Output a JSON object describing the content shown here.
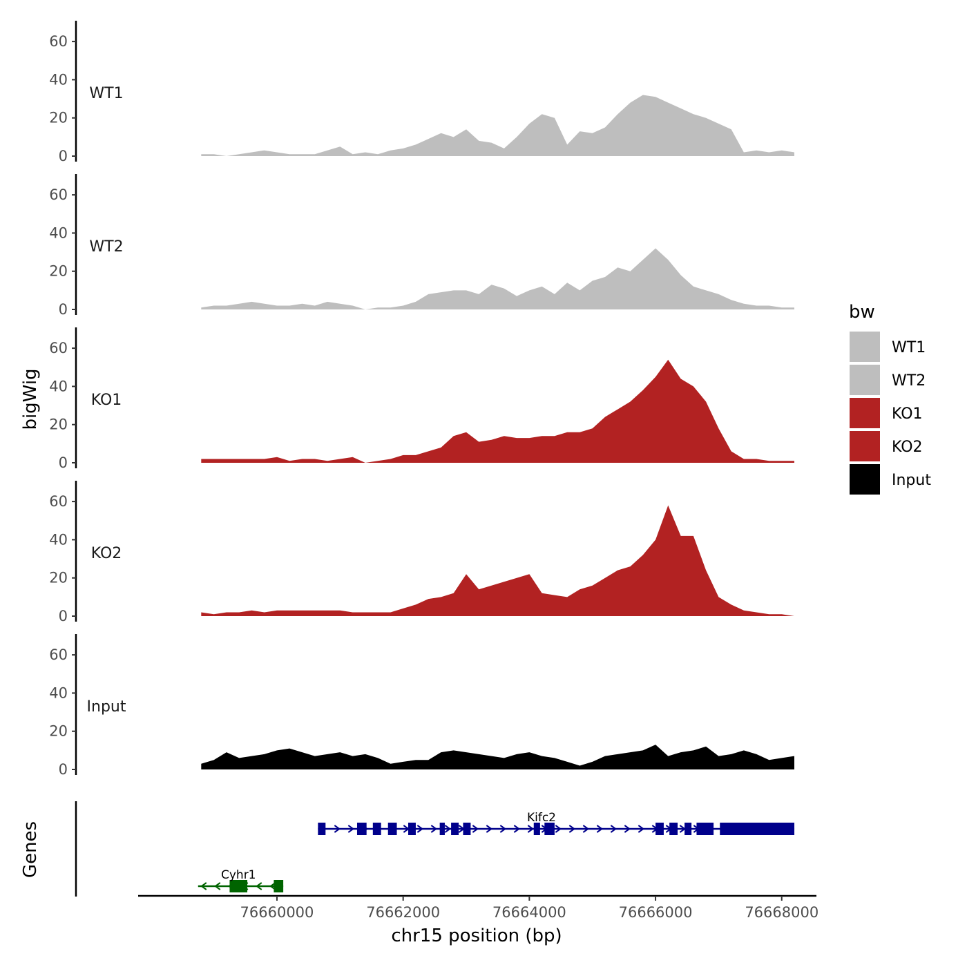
{
  "chart_data": {
    "type": "area",
    "ylabel": "bigWig",
    "genes_label": "Genes",
    "xlabel": "chr15 position (bp)",
    "x_ticks": [
      "76660000",
      "76662000",
      "76664000",
      "76666000",
      "76668000"
    ],
    "x_tick_values": [
      76660000,
      76662000,
      76664000,
      76666000,
      76668000
    ],
    "xlim": [
      76657800,
      76668550
    ],
    "y_ticks": [
      "0",
      "20",
      "40",
      "60"
    ],
    "y_tick_values": [
      0,
      20,
      40,
      60
    ],
    "ylim": [
      0,
      68
    ],
    "legend": {
      "title": "bw",
      "position": "right",
      "entries": [
        {
          "label": "WT1",
          "color": "#bebebe"
        },
        {
          "label": "WT2",
          "color": "#bebebe"
        },
        {
          "label": "KO1",
          "color": "#b22222"
        },
        {
          "label": "KO2",
          "color": "#b22222"
        },
        {
          "label": "Input",
          "color": "#000000"
        }
      ]
    },
    "x": [
      76658800,
      76659000,
      76659200,
      76659400,
      76659600,
      76659800,
      76660000,
      76660200,
      76660400,
      76660600,
      76660800,
      76661000,
      76661200,
      76661400,
      76661600,
      76661800,
      76662000,
      76662200,
      76662400,
      76662600,
      76662800,
      76663000,
      76663200,
      76663400,
      76663600,
      76663800,
      76664000,
      76664200,
      76664400,
      76664600,
      76664800,
      76665000,
      76665200,
      76665400,
      76665600,
      76665800,
      76666000,
      76666200,
      76666400,
      76666600,
      76666800,
      76667000,
      76667200,
      76667400,
      76667600,
      76667800,
      76668000,
      76668200
    ],
    "series": [
      {
        "name": "WT1",
        "color": "#bebebe",
        "values": [
          1,
          1,
          0,
          1,
          2,
          3,
          2,
          1,
          1,
          1,
          3,
          5,
          1,
          2,
          1,
          3,
          4,
          6,
          9,
          12,
          10,
          14,
          8,
          7,
          4,
          10,
          17,
          22,
          20,
          6,
          13,
          12,
          15,
          22,
          28,
          32,
          31,
          28,
          25,
          22,
          20,
          17,
          14,
          2,
          3,
          2,
          3,
          2
        ]
      },
      {
        "name": "WT2",
        "color": "#bebebe",
        "values": [
          1,
          2,
          2,
          3,
          4,
          3,
          2,
          2,
          3,
          2,
          4,
          3,
          2,
          0,
          1,
          1,
          2,
          4,
          8,
          9,
          10,
          10,
          8,
          13,
          11,
          7,
          10,
          12,
          8,
          14,
          10,
          15,
          17,
          22,
          20,
          26,
          32,
          26,
          18,
          12,
          10,
          8,
          5,
          3,
          2,
          2,
          1,
          1
        ]
      },
      {
        "name": "KO1",
        "color": "#b22222",
        "values": [
          2,
          2,
          2,
          2,
          2,
          2,
          3,
          1,
          2,
          2,
          1,
          2,
          3,
          0,
          1,
          2,
          4,
          4,
          6,
          8,
          14,
          16,
          11,
          12,
          14,
          13,
          13,
          14,
          14,
          16,
          16,
          18,
          24,
          28,
          32,
          38,
          45,
          54,
          44,
          40,
          32,
          18,
          6,
          2,
          2,
          1,
          1,
          1
        ]
      },
      {
        "name": "KO2",
        "color": "#b22222",
        "values": [
          2,
          1,
          2,
          2,
          3,
          2,
          3,
          3,
          3,
          3,
          3,
          3,
          2,
          2,
          2,
          2,
          4,
          6,
          9,
          10,
          12,
          22,
          14,
          16,
          18,
          20,
          22,
          12,
          11,
          10,
          14,
          16,
          20,
          24,
          26,
          32,
          40,
          58,
          42,
          42,
          24,
          10,
          6,
          3,
          2,
          1,
          1,
          0
        ]
      },
      {
        "name": "Input",
        "color": "#000000",
        "values": [
          3,
          5,
          9,
          6,
          7,
          8,
          10,
          11,
          9,
          7,
          8,
          9,
          7,
          8,
          6,
          3,
          4,
          5,
          5,
          9,
          10,
          9,
          8,
          7,
          6,
          8,
          9,
          7,
          6,
          4,
          2,
          4,
          7,
          8,
          9,
          10,
          13,
          7,
          9,
          10,
          12,
          7,
          8,
          10,
          8,
          5,
          6,
          7
        ]
      }
    ],
    "genes": [
      {
        "name": "Kifc2",
        "color": "#00008b",
        "strand": "+",
        "start": 76660650,
        "end": 76668200,
        "exons": [
          [
            76660650,
            76660770
          ],
          [
            76661270,
            76661420
          ],
          [
            76661520,
            76661650
          ],
          [
            76661760,
            76661900
          ],
          [
            76662080,
            76662200
          ],
          [
            76662580,
            76662660
          ],
          [
            76662760,
            76662880
          ],
          [
            76662950,
            76663070
          ],
          [
            76664070,
            76664170
          ],
          [
            76664240,
            76664400
          ],
          [
            76666000,
            76666130
          ],
          [
            76666220,
            76666350
          ],
          [
            76666460,
            76666570
          ],
          [
            76666650,
            76666920
          ],
          [
            76667020,
            76668200
          ]
        ]
      },
      {
        "name": "Cyhr1",
        "color": "#006400",
        "strand": "-",
        "start": 76658750,
        "end": 76660100,
        "exons": [
          [
            76659250,
            76659530
          ],
          [
            76659950,
            76660100
          ]
        ]
      }
    ]
  }
}
